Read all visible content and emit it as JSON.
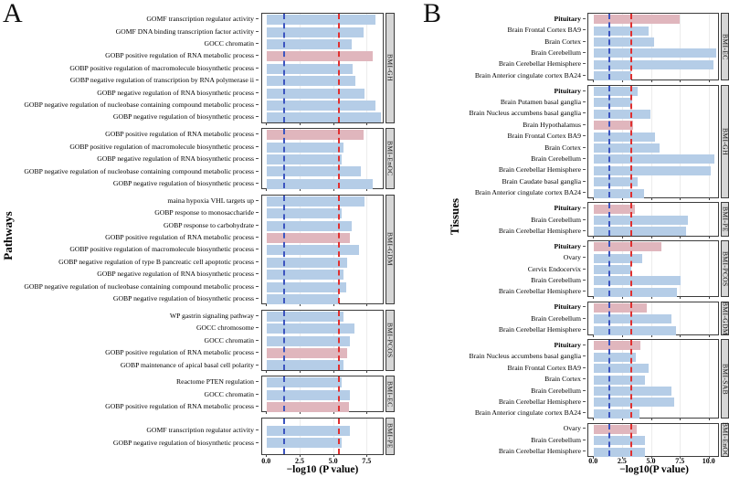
{
  "colors": {
    "bar_blue": "#b5cde7",
    "bar_pink": "#e0b6bd",
    "ref_blue": "#3d55c0",
    "ref_red": "#e03030",
    "strip_bg": "#d6d6d6",
    "panel_border": "#3c3c3c",
    "gridline": "#ececec",
    "text": "#000000"
  },
  "chart_data": [
    {
      "type": "bar",
      "orientation": "horizontal",
      "panel_letter": "A",
      "ylabel": "Pathways",
      "xlabel": "−log10 (P value)",
      "xticks": [
        "0.0",
        "2.5",
        "5.0",
        "7.5"
      ],
      "xtick_values": [
        0,
        2.5,
        5,
        7.5
      ],
      "xlim": [
        0,
        8.75
      ],
      "grid": true,
      "ref_lines": [
        {
          "value": 1.3,
          "color_key": "ref_blue",
          "style": "dashed"
        },
        {
          "value": 5.4,
          "color_key": "ref_red",
          "style": "dashed"
        }
      ],
      "facets": [
        {
          "label": "BMI-GH",
          "rows": [
            {
              "label": "GOMF transcription regulator activity",
              "value": 8.1,
              "color": "blue"
            },
            {
              "label": "GOMF DNA binding transcription factor activity",
              "value": 7.2,
              "color": "blue"
            },
            {
              "label": "GOCC chromatin",
              "value": 6.3,
              "color": "blue"
            },
            {
              "label": "GOBP positive regulation of RNA metabolic process",
              "value": 7.9,
              "color": "pink"
            },
            {
              "label": "GOBP positive regulation of macromolecule biosynthetic process",
              "value": 6.4,
              "color": "blue"
            },
            {
              "label": "GOBP negative regulation of transcription by RNA polymerase ii",
              "value": 6.6,
              "color": "blue"
            },
            {
              "label": "GOBP negative regulation of RNA biosynthetic process",
              "value": 7.3,
              "color": "blue"
            },
            {
              "label": "GOBP negative regulation of nucleobase containing compound metabolic process",
              "value": 8.1,
              "color": "blue"
            },
            {
              "label": "GOBP negative regulation of biosynthetic process",
              "value": 8.5,
              "color": "blue"
            }
          ]
        },
        {
          "label": "BMI-EnOC",
          "rows": [
            {
              "label": "GOBP positive regulation of RNA metabolic process",
              "value": 7.2,
              "color": "pink"
            },
            {
              "label": "GOBP positive regulation of macromolecule biosynthetic process",
              "value": 5.7,
              "color": "blue"
            },
            {
              "label": "GOBP negative regulation of RNA biosynthetic process",
              "value": 5.6,
              "color": "blue"
            },
            {
              "label": "GOBP negative regulation of nucleobase containing compound metabolic process",
              "value": 7.0,
              "color": "blue"
            },
            {
              "label": "GOBP negative regulation of biosynthetic process",
              "value": 7.9,
              "color": "blue"
            }
          ]
        },
        {
          "label": "BMI-GDM",
          "rows": [
            {
              "label": "maina hypoxia VHL targets up",
              "value": 7.3,
              "color": "blue"
            },
            {
              "label": "GOBP response to monosaccharide",
              "value": 5.6,
              "color": "blue"
            },
            {
              "label": "GOBP response to carbohydrate",
              "value": 6.3,
              "color": "blue"
            },
            {
              "label": "GOBP positive regulation of RNA metabolic process",
              "value": 6.2,
              "color": "pink"
            },
            {
              "label": "GOBP positive regulation of macromolecule biosynthetic process",
              "value": 6.9,
              "color": "blue"
            },
            {
              "label": "GOBP negative regulation of type B pancreatic cell apoptotic process",
              "value": 6.0,
              "color": "blue"
            },
            {
              "label": "GOBP negative regulation of RNA biosynthetic process",
              "value": 5.7,
              "color": "blue"
            },
            {
              "label": "GOBP negative regulation of nucleobase containing compound metabolic process",
              "value": 5.9,
              "color": "blue"
            },
            {
              "label": "GOBP negative regulation of biosynthetic process",
              "value": 5.4,
              "color": "blue"
            }
          ]
        },
        {
          "label": "BMI-PCOS",
          "rows": [
            {
              "label": "WP gastrin signaling pathway",
              "value": 5.7,
              "color": "blue"
            },
            {
              "label": "GOCC chromosome",
              "value": 6.5,
              "color": "blue"
            },
            {
              "label": "GOCC chromatin",
              "value": 6.2,
              "color": "blue"
            },
            {
              "label": "GOBP positive regulation of RNA metabolic process",
              "value": 6.0,
              "color": "pink"
            },
            {
              "label": "GOBP maintenance of apical basal cell polarity",
              "value": 5.7,
              "color": "blue"
            }
          ]
        },
        {
          "label": "BMI-EC",
          "rows": [
            {
              "label": "Reactome PTEN regulation",
              "value": 5.6,
              "color": "blue"
            },
            {
              "label": "GOCC chromatin",
              "value": 6.2,
              "color": "blue"
            },
            {
              "label": "GOBP positive regulation of RNA metabolic process",
              "value": 6.1,
              "color": "pink"
            }
          ]
        },
        {
          "label": "BMI-PE",
          "rows": [
            {
              "label": "GOMF transcription regulator activity",
              "value": 6.2,
              "color": "blue"
            },
            {
              "label": "GOBP negative regulation of biosynthetic process",
              "value": 5.6,
              "color": "blue"
            }
          ]
        }
      ]
    },
    {
      "type": "bar",
      "orientation": "horizontal",
      "panel_letter": "B",
      "ylabel": "Tissues",
      "xlabel": "−log10(P value)",
      "xticks": [
        "0.0",
        "2.5",
        "5.0",
        "7.5",
        "10.0"
      ],
      "xtick_values": [
        0,
        2.5,
        5,
        7.5,
        10
      ],
      "xlim": [
        0,
        10.9
      ],
      "grid": true,
      "ref_lines": [
        {
          "value": 1.3,
          "color_key": "ref_blue",
          "style": "dashed"
        },
        {
          "value": 3.2,
          "color_key": "ref_red",
          "style": "dashed"
        }
      ],
      "facets": [
        {
          "label": "BMI-EC",
          "rows": [
            {
              "label": "Pituitary",
              "value": 7.4,
              "color": "pink",
              "bold": true
            },
            {
              "label": "Brain Frontal Cortex BA9",
              "value": 4.7,
              "color": "blue"
            },
            {
              "label": "Brain Cortex",
              "value": 5.2,
              "color": "blue"
            },
            {
              "label": "Brain Cerebellum",
              "value": 10.6,
              "color": "blue"
            },
            {
              "label": "Brain Cerebellar Hemisphere",
              "value": 10.3,
              "color": "blue"
            },
            {
              "label": "Brain Anterior cingulate cortex BA24",
              "value": 3.2,
              "color": "blue"
            }
          ]
        },
        {
          "label": "BMI-GH",
          "rows": [
            {
              "label": "Pituitary",
              "value": 3.8,
              "color": "blue",
              "bold": true
            },
            {
              "label": "Brain Putamen basal ganglia",
              "value": 3.3,
              "color": "blue"
            },
            {
              "label": "Brain Nucleus accumbens basal ganglia",
              "value": 4.9,
              "color": "blue"
            },
            {
              "label": "Brain Hypothalamus",
              "value": 3.4,
              "color": "pink"
            },
            {
              "label": "Brain Frontal Cortex BA9",
              "value": 5.3,
              "color": "blue"
            },
            {
              "label": "Brain Cortex",
              "value": 5.7,
              "color": "blue"
            },
            {
              "label": "Brain Cerebellum",
              "value": 10.4,
              "color": "blue"
            },
            {
              "label": "Brain Cerebellar Hemisphere",
              "value": 10.1,
              "color": "blue"
            },
            {
              "label": "Brain Caudate basal ganglia",
              "value": 3.8,
              "color": "blue"
            },
            {
              "label": "Brain Anterior cingulate cortex BA24",
              "value": 4.3,
              "color": "blue"
            }
          ]
        },
        {
          "label": "BMI-PE",
          "rows": [
            {
              "label": "Pituitary",
              "value": 3.5,
              "color": "pink",
              "bold": true
            },
            {
              "label": "Brain Cerebellum",
              "value": 8.1,
              "color": "blue"
            },
            {
              "label": "Brain Cerebellar Hemisphere",
              "value": 8.0,
              "color": "blue"
            }
          ]
        },
        {
          "label": "BMI-PCOS",
          "rows": [
            {
              "label": "Pituitary",
              "value": 5.8,
              "color": "pink",
              "bold": true
            },
            {
              "label": "Ovary",
              "value": 4.2,
              "color": "blue"
            },
            {
              "label": "Cervix Endocervix",
              "value": 3.2,
              "color": "blue"
            },
            {
              "label": "Brain Cerebellum",
              "value": 7.5,
              "color": "blue"
            },
            {
              "label": "Brain Cerebellar Hemisphere",
              "value": 7.2,
              "color": "blue"
            }
          ]
        },
        {
          "label": "BMI-GDM",
          "rows": [
            {
              "label": "Pituitary",
              "value": 4.6,
              "color": "pink",
              "bold": true
            },
            {
              "label": "Brain Cerebellum",
              "value": 6.7,
              "color": "blue"
            },
            {
              "label": "Brain Cerebellar Hemisphere",
              "value": 7.1,
              "color": "blue"
            }
          ]
        },
        {
          "label": "BMI-SAB",
          "rows": [
            {
              "label": "Pituitary",
              "value": 4.0,
              "color": "pink",
              "bold": true
            },
            {
              "label": "Brain Nucleus accumbens basal ganglia",
              "value": 3.6,
              "color": "blue"
            },
            {
              "label": "Brain Frontal Cortex BA9",
              "value": 4.7,
              "color": "blue"
            },
            {
              "label": "Brain Cortex",
              "value": 4.4,
              "color": "blue"
            },
            {
              "label": "Brain Cerebellum",
              "value": 6.7,
              "color": "blue"
            },
            {
              "label": "Brain Cerebellar Hemisphere",
              "value": 6.9,
              "color": "blue"
            },
            {
              "label": "Brain Anterior cingulate cortex BA24",
              "value": 3.9,
              "color": "blue"
            }
          ]
        },
        {
          "label": "BMI-EnOC",
          "rows": [
            {
              "label": "Ovary",
              "value": 3.7,
              "color": "pink"
            },
            {
              "label": "Brain Cerebellum",
              "value": 4.4,
              "color": "blue"
            },
            {
              "label": "Brain Cerebellar Hemisphere",
              "value": 4.4,
              "color": "blue"
            }
          ]
        }
      ]
    }
  ]
}
